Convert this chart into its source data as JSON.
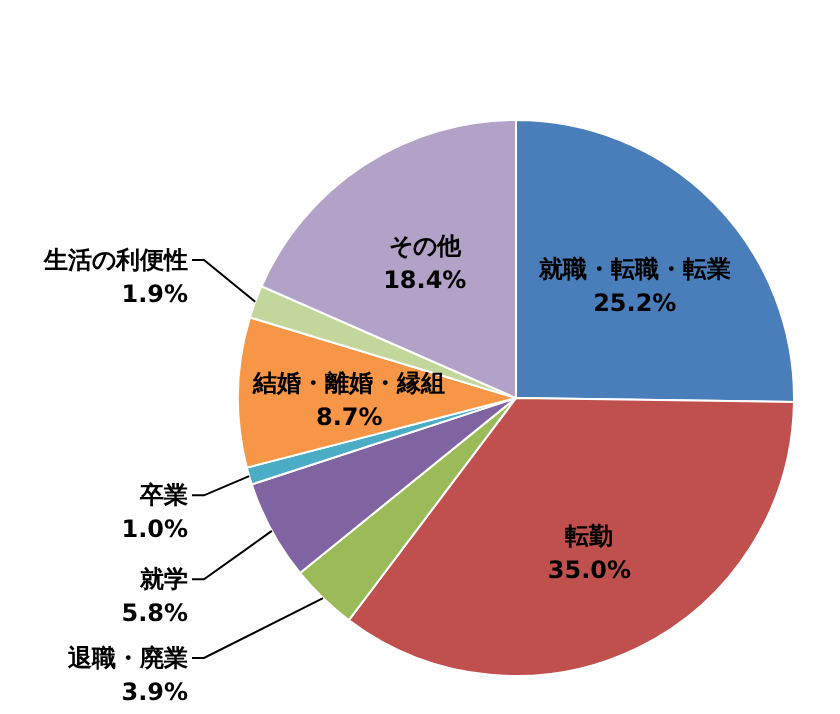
{
  "chart_data": {
    "type": "pie",
    "categories": [
      "就職・転職・転業",
      "転勤",
      "退職・廃業",
      "就学",
      "卒業",
      "結婚・離婚・縁組",
      "生活の利便性",
      "その他"
    ],
    "values": [
      25.2,
      35.0,
      3.9,
      5.8,
      1.0,
      8.7,
      1.9,
      18.4
    ],
    "value_labels": [
      "25.2%",
      "35.0%",
      "3.9%",
      "5.8%",
      "1.0%",
      "8.7%",
      "1.9%",
      "18.4%"
    ],
    "colors": [
      "#4a7ebb",
      "#c0504d",
      "#9bbb59",
      "#8064a2",
      "#4bacc6",
      "#f79646",
      "#c3d69b",
      "#b3a2c7"
    ]
  }
}
